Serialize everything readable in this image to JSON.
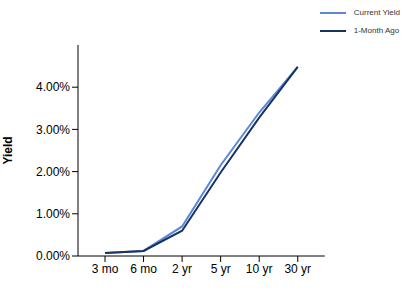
{
  "chart_data": {
    "type": "line",
    "y_label": "Yield",
    "categories": [
      "3 mo",
      "6 mo",
      "2 yr",
      "5 yr",
      "10 yr",
      "30 yr"
    ],
    "series": [
      {
        "name": "Current Yield",
        "color": "#5b86d9",
        "values": [
          0.07,
          0.12,
          0.7,
          2.15,
          3.4,
          4.48
        ]
      },
      {
        "name": "1-Month Ago",
        "color": "#16345f",
        "values": [
          0.07,
          0.12,
          0.6,
          1.98,
          3.28,
          4.48
        ]
      }
    ],
    "ylim": [
      0,
      5
    ],
    "yticks": [
      {
        "value": 0,
        "label": "0.00%"
      },
      {
        "value": 1,
        "label": "1.00%"
      },
      {
        "value": 2,
        "label": "2.00%"
      },
      {
        "value": 3,
        "label": "3.00%"
      },
      {
        "value": 4,
        "label": "4.00%"
      }
    ],
    "grid": false,
    "legend": "upper right"
  }
}
